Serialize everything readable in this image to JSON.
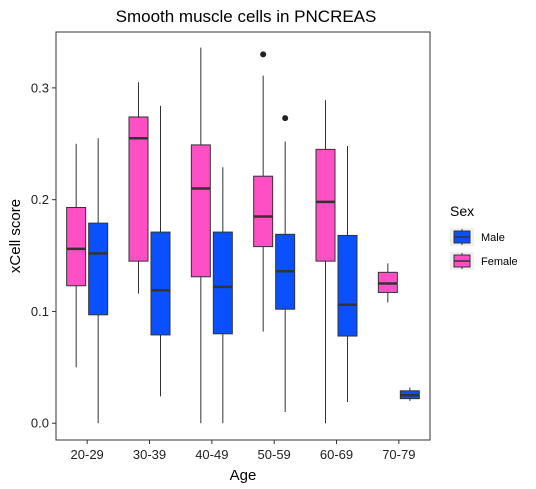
{
  "chart_data": {
    "type": "boxplot",
    "title": "Smooth muscle cells in PNCREAS",
    "xlabel": "Age",
    "ylabel": "xCell score",
    "categories": [
      "20-29",
      "30-39",
      "40-49",
      "50-59",
      "60-69",
      "70-79"
    ],
    "ylim": [
      -0.015,
      0.35
    ],
    "yticks": [
      0.0,
      0.1,
      0.2,
      0.3
    ],
    "ytick_labels": [
      "0.0",
      "0.1",
      "0.2",
      "0.3"
    ],
    "grid": false,
    "legend": {
      "title": "Sex",
      "position": "right",
      "entries": [
        {
          "label": "Male",
          "color": "#0a50ff"
        },
        {
          "label": "Female",
          "color": "#ff4fc4"
        }
      ]
    },
    "series": [
      {
        "name": "Female",
        "color": "#ff4fc4",
        "boxes": [
          {
            "min": 0.05,
            "q1": 0.123,
            "median": 0.156,
            "q3": 0.193,
            "max": 0.25,
            "outliers": []
          },
          {
            "min": 0.116,
            "q1": 0.145,
            "median": 0.255,
            "q3": 0.274,
            "max": 0.305,
            "outliers": []
          },
          {
            "min": 0.0,
            "q1": 0.131,
            "median": 0.21,
            "q3": 0.249,
            "max": 0.336,
            "outliers": []
          },
          {
            "min": 0.082,
            "q1": 0.158,
            "median": 0.185,
            "q3": 0.221,
            "max": 0.311,
            "outliers": [
              0.33
            ]
          },
          {
            "min": 0.0,
            "q1": 0.145,
            "median": 0.198,
            "q3": 0.245,
            "max": 0.289,
            "outliers": []
          },
          {
            "min": 0.108,
            "q1": 0.117,
            "median": 0.125,
            "q3": 0.135,
            "max": 0.143,
            "outliers": []
          }
        ]
      },
      {
        "name": "Male",
        "color": "#0a50ff",
        "boxes": [
          {
            "min": 0.0,
            "q1": 0.097,
            "median": 0.152,
            "q3": 0.179,
            "max": 0.255,
            "outliers": []
          },
          {
            "min": 0.024,
            "q1": 0.079,
            "median": 0.119,
            "q3": 0.171,
            "max": 0.284,
            "outliers": []
          },
          {
            "min": 0.0,
            "q1": 0.08,
            "median": 0.122,
            "q3": 0.171,
            "max": 0.229,
            "outliers": []
          },
          {
            "min": 0.01,
            "q1": 0.102,
            "median": 0.136,
            "q3": 0.169,
            "max": 0.252,
            "outliers": [
              0.273
            ]
          },
          {
            "min": 0.019,
            "q1": 0.078,
            "median": 0.106,
            "q3": 0.168,
            "max": 0.248,
            "outliers": []
          },
          {
            "min": 0.02,
            "q1": 0.022,
            "median": 0.025,
            "q3": 0.029,
            "max": 0.032,
            "outliers": []
          }
        ]
      }
    ]
  }
}
